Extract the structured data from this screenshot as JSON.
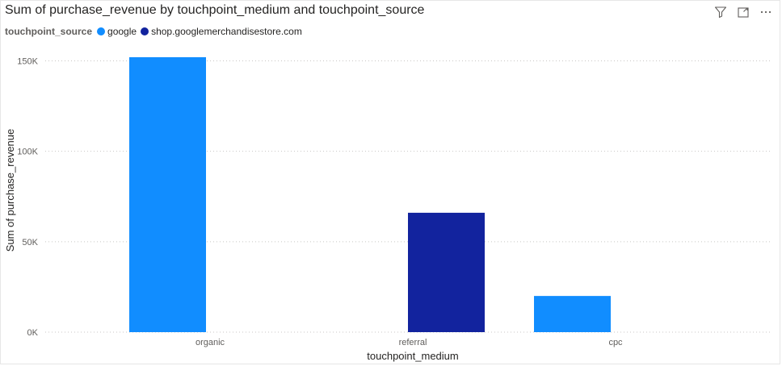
{
  "visual": {
    "title": "Sum of purchase_revenue by touchpoint_medium and touchpoint_source"
  },
  "header_icons": {
    "filter": "filter-icon",
    "focus": "focus-mode-icon",
    "more": "more-options-icon"
  },
  "chart_data": {
    "type": "bar",
    "title": "Sum of purchase_revenue by touchpoint_medium and touchpoint_source",
    "xlabel": "touchpoint_medium",
    "ylabel": "Sum of purchase_revenue",
    "categories": [
      "organic",
      "referral",
      "cpc"
    ],
    "legend_title": "touchpoint_source",
    "legend_position": "top-left",
    "series": [
      {
        "name": "google",
        "color": "#118DFF",
        "values": [
          152000,
          null,
          20000
        ]
      },
      {
        "name": "shop.googlemerchandisestore.com",
        "color": "#12239E",
        "values": [
          null,
          66000,
          null
        ]
      }
    ],
    "ylim": [
      0,
      160000
    ],
    "yticks": [
      {
        "value": 0,
        "label": "0K"
      },
      {
        "value": 50000,
        "label": "50K"
      },
      {
        "value": 100000,
        "label": "100K"
      },
      {
        "value": 150000,
        "label": "150K"
      }
    ],
    "grid": true
  }
}
